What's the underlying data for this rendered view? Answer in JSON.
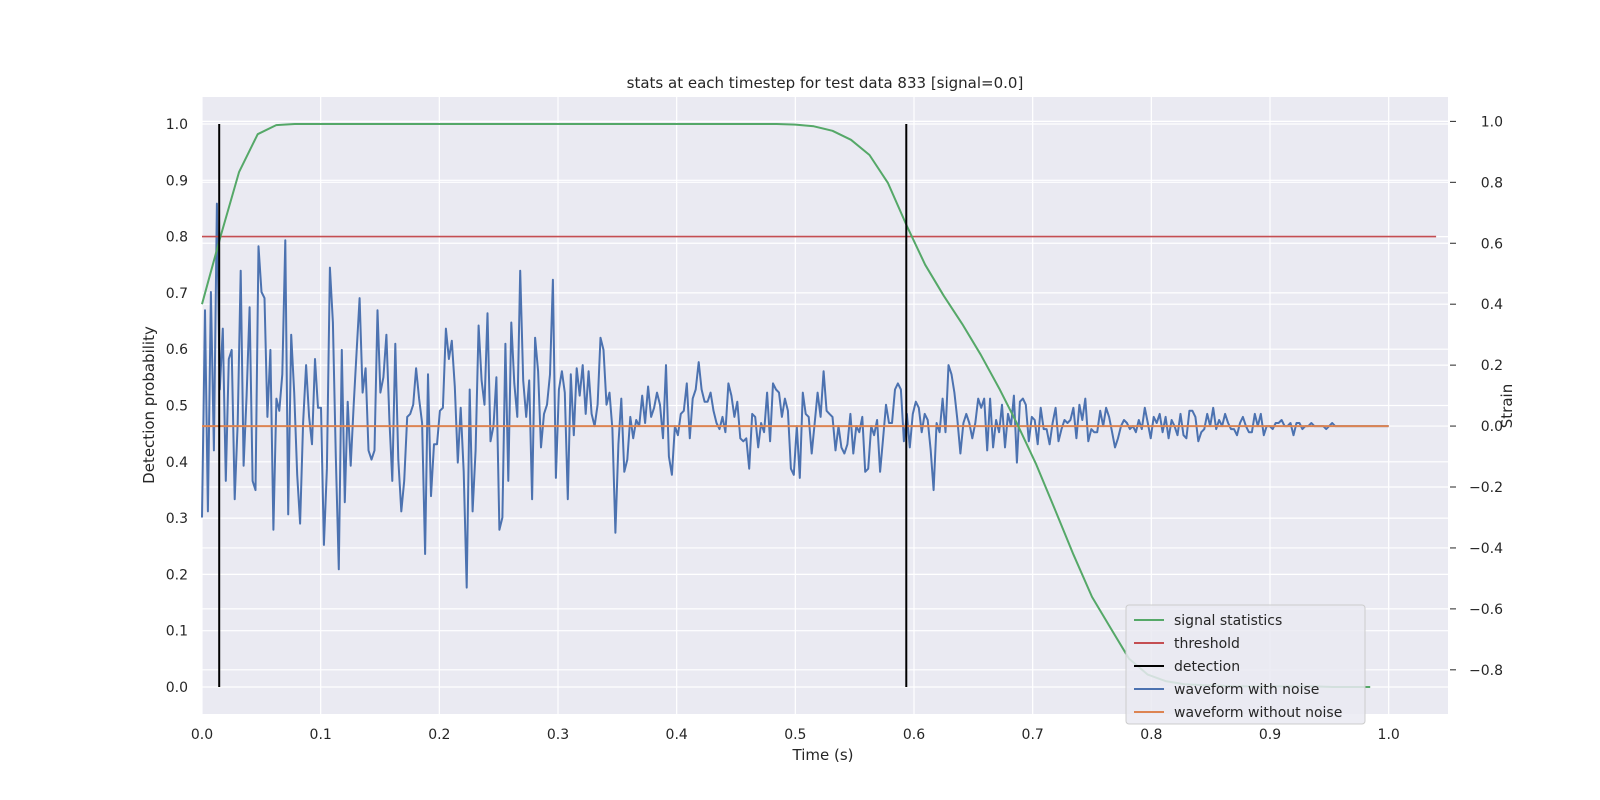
{
  "chart_data": {
    "type": "line",
    "title": "stats at each timestep for test data 833 [signal=0.0]",
    "xlabel": "Time (s)",
    "ylabel": "Detection probability",
    "ylabel_right": "Strain",
    "xlim": [
      0.0,
      1.05
    ],
    "ylim": [
      -0.048,
      1.048
    ],
    "ylim_right": [
      -0.945,
      1.08
    ],
    "x_ticks": [
      0.0,
      0.1,
      0.2,
      0.3,
      0.4,
      0.5,
      0.6,
      0.7,
      0.8,
      0.9,
      1.0
    ],
    "x_tick_labels": [
      "0.0",
      "0.1",
      "0.2",
      "0.3",
      "0.4",
      "0.5",
      "0.6",
      "0.7",
      "0.8",
      "0.9",
      "1.0"
    ],
    "y_ticks": [
      0.0,
      0.1,
      0.2,
      0.3,
      0.4,
      0.5,
      0.6,
      0.7,
      0.8,
      0.9,
      1.0
    ],
    "y_tick_labels": [
      "0.0",
      "0.1",
      "0.2",
      "0.3",
      "0.4",
      "0.5",
      "0.6",
      "0.7",
      "0.8",
      "0.9",
      "1.0"
    ],
    "y_ticks_right": [
      -0.8,
      -0.6,
      -0.4,
      -0.2,
      0.0,
      0.2,
      0.4,
      0.6,
      0.8,
      1.0
    ],
    "y_tick_labels_right": [
      "−0.8",
      "−0.6",
      "−0.4",
      "−0.2",
      "0.0",
      "0.2",
      "0.4",
      "0.6",
      "0.8",
      "1.0"
    ],
    "grid": true,
    "legend_position": "lower-right",
    "colors": {
      "background": "#eaeaf2",
      "grid": "#ffffff",
      "signal_statistics": "#55a868",
      "threshold": "#c44e52",
      "detection": "#000000",
      "waveform_with_noise": "#4c72b0",
      "waveform_without_noise": "#dd8452"
    },
    "series": [
      {
        "name": "signal statistics",
        "axis": "left",
        "x": [
          0.0,
          0.0156,
          0.0313,
          0.0469,
          0.0625,
          0.0781,
          0.0938,
          0.1094,
          0.125,
          0.1406,
          0.1563,
          0.1719,
          0.1875,
          0.2031,
          0.2188,
          0.2344,
          0.25,
          0.2656,
          0.2813,
          0.2969,
          0.3125,
          0.3281,
          0.3438,
          0.3594,
          0.375,
          0.3906,
          0.4063,
          0.4219,
          0.4375,
          0.4531,
          0.4688,
          0.4844,
          0.5,
          0.5156,
          0.5313,
          0.5469,
          0.5625,
          0.5781,
          0.5938,
          0.6094,
          0.625,
          0.6406,
          0.6563,
          0.6719,
          0.6875,
          0.7031,
          0.7188,
          0.7344,
          0.75,
          0.7656,
          0.7813,
          0.7969,
          0.8125,
          0.8281,
          0.8438,
          0.8594,
          0.875,
          0.8906,
          0.9063,
          0.9219,
          0.9375,
          0.9531,
          0.9688,
          0.9844
        ],
        "values": [
          0.68,
          0.8,
          0.915,
          0.982,
          0.998,
          1.0,
          1.0,
          1.0,
          1.0,
          1.0,
          1.0,
          1.0,
          1.0,
          1.0,
          1.0,
          1.0,
          1.0,
          1.0,
          1.0,
          1.0,
          1.0,
          1.0,
          1.0,
          1.0,
          1.0,
          1.0,
          1.0,
          1.0,
          1.0,
          1.0,
          1.0,
          1.0,
          0.999,
          0.996,
          0.988,
          0.972,
          0.945,
          0.895,
          0.82,
          0.75,
          0.695,
          0.645,
          0.59,
          0.53,
          0.465,
          0.395,
          0.315,
          0.235,
          0.16,
          0.105,
          0.05,
          0.022,
          0.01,
          0.005,
          0.003,
          0.002,
          0.001,
          0.001,
          0.001,
          0.001,
          0.001,
          0.0,
          0.0,
          0.0
        ]
      },
      {
        "name": "threshold",
        "axis": "left",
        "x": [
          0.0,
          1.04
        ],
        "values": [
          0.8,
          0.8
        ]
      },
      {
        "name": "detection",
        "axis": "left",
        "segments": [
          {
            "x": 0.0145,
            "y0": 0.0,
            "y1": 1.0
          },
          {
            "x": 0.5935,
            "y0": 0.0,
            "y1": 1.0
          }
        ]
      },
      {
        "name": "waveform with noise",
        "axis": "right",
        "x_start": 0.0,
        "x_end": 1.0,
        "values": [
          -0.3,
          0.38,
          -0.28,
          0.44,
          -0.08,
          0.73,
          0.12,
          0.32,
          -0.18,
          0.22,
          0.25,
          -0.24,
          0.01,
          0.51,
          -0.13,
          0.1,
          0.39,
          -0.18,
          -0.21,
          0.59,
          0.44,
          0.42,
          0.03,
          0.25,
          -0.34,
          0.09,
          0.05,
          0.17,
          0.61,
          -0.29,
          0.3,
          0.11,
          -0.16,
          -0.32,
          0.01,
          0.2,
          0.03,
          -0.06,
          0.22,
          0.06,
          0.06,
          -0.39,
          -0.14,
          0.52,
          0.34,
          -0.1,
          -0.47,
          0.25,
          -0.25,
          0.08,
          -0.13,
          0.07,
          0.25,
          0.42,
          0.11,
          0.19,
          -0.08,
          -0.11,
          -0.08,
          0.38,
          0.11,
          0.16,
          0.3,
          0.02,
          -0.18,
          0.27,
          -0.11,
          -0.28,
          -0.18,
          0.03,
          0.04,
          0.07,
          0.19,
          0.09,
          0.01,
          -0.42,
          0.17,
          -0.23,
          -0.06,
          -0.06,
          0.05,
          0.06,
          0.32,
          0.22,
          0.28,
          0.13,
          -0.12,
          0.06,
          -0.15,
          -0.53,
          0.12,
          -0.28,
          -0.08,
          0.33,
          0.15,
          0.07,
          0.37,
          -0.05,
          0.0,
          0.16,
          -0.34,
          -0.3,
          0.27,
          -0.18,
          0.34,
          0.14,
          0.03,
          0.51,
          0.15,
          0.03,
          0.15,
          -0.24,
          0.29,
          0.18,
          -0.07,
          0.04,
          0.07,
          0.17,
          0.48,
          -0.17,
          0.12,
          0.18,
          0.11,
          -0.24,
          0.17,
          -0.03,
          0.19,
          0.1,
          0.2,
          0.04,
          0.18,
          0.04,
          0.0,
          0.07,
          0.29,
          0.25,
          0.07,
          0.11,
          -0.01,
          -0.35,
          -0.06,
          0.09,
          -0.15,
          -0.11,
          0.03,
          -0.04,
          0.02,
          0.0,
          0.1,
          0.01,
          0.13,
          0.03,
          0.06,
          0.11,
          0.07,
          -0.04,
          0.2,
          -0.1,
          -0.16,
          0.0,
          -0.03,
          0.04,
          0.05,
          0.14,
          -0.04,
          0.09,
          0.12,
          0.21,
          0.12,
          0.08,
          0.08,
          0.11,
          0.05,
          0.01,
          -0.01,
          0.03,
          -0.02,
          0.14,
          0.1,
          0.03,
          0.08,
          -0.04,
          -0.05,
          -0.04,
          -0.14,
          0.04,
          0.03,
          -0.07,
          0.01,
          -0.02,
          0.11,
          -0.05,
          0.14,
          0.12,
          0.11,
          0.03,
          0.09,
          0.05,
          -0.14,
          -0.16,
          0.0,
          -0.17,
          0.11,
          0.04,
          0.03,
          -0.09,
          0.01,
          0.11,
          0.03,
          0.18,
          0.05,
          0.04,
          0.03,
          -0.08,
          0.0,
          -0.07,
          -0.09,
          -0.06,
          0.04,
          -0.09,
          0.0,
          -0.02,
          0.03,
          -0.15,
          -0.14,
          0.0,
          -0.03,
          0.02,
          -0.15,
          -0.04,
          0.07,
          0.01,
          0.01,
          0.12,
          0.14,
          0.12,
          -0.05,
          0.04,
          -0.07,
          0.04,
          0.08,
          0.06,
          -0.02,
          0.04,
          0.02,
          -0.08,
          -0.21,
          0.01,
          -0.02,
          0.09,
          -0.02,
          0.2,
          0.17,
          0.11,
          0.02,
          -0.09,
          0.01,
          0.04,
          0.01,
          -0.04,
          0.01,
          0.09,
          0.06,
          0.09,
          -0.08,
          0.09,
          -0.07,
          0.02,
          -0.02,
          0.07,
          -0.07,
          0.04,
          0.0,
          0.1,
          -0.12,
          0.08,
          0.09,
          0.07,
          -0.05,
          0.03,
          0.02,
          -0.06,
          0.06,
          -0.01,
          -0.01,
          -0.06,
          0.01,
          0.06,
          -0.05,
          -0.01,
          0.02,
          0.01,
          0.02,
          0.06,
          -0.04,
          0.07,
          0.02,
          0.09,
          -0.05,
          -0.01,
          -0.02,
          -0.02,
          0.05,
          0.0,
          0.06,
          0.03,
          -0.02,
          -0.07,
          -0.04,
          0.0,
          0.02,
          0.01,
          -0.01,
          0.0,
          -0.02,
          0.02,
          -0.01,
          0.06,
          0.01,
          -0.04,
          0.03,
          0.01,
          0.04,
          -0.02,
          0.03,
          -0.04,
          0.02,
          0.0,
          -0.03,
          0.04,
          -0.03,
          -0.04,
          0.05,
          0.05,
          0.03,
          -0.05,
          -0.02,
          -0.01,
          0.04,
          0.0,
          0.06,
          -0.01,
          0.02,
          0.0,
          0.04,
          0.01,
          -0.01,
          -0.01,
          -0.03,
          0.01,
          0.03,
          0.0,
          -0.02,
          -0.02,
          0.04,
          0.0,
          0.04,
          -0.03,
          0.0,
          0.0,
          -0.01,
          0.01,
          0.01,
          0.02,
          0.0,
          0.0,
          0.01,
          -0.03,
          0.01,
          0.01,
          -0.01,
          0.0,
          0.0,
          0.01,
          0.0,
          0.0,
          0.0,
          0.0,
          -0.01,
          0.0,
          0.01,
          0.0,
          0.0,
          0.0,
          0.0,
          0.0,
          0.0,
          0.0,
          0.0,
          0.0,
          0.0,
          0.0,
          0.0,
          0.0,
          0.0,
          0.0,
          0.0,
          0.0,
          0.0,
          0.0
        ],
        "note_values": "approximate; dense noise trace"
      },
      {
        "name": "waveform without noise",
        "axis": "right",
        "x": [
          0.0,
          1.0
        ],
        "values": [
          0.0,
          0.0
        ]
      }
    ],
    "legend": [
      "signal statistics",
      "threshold",
      "detection",
      "waveform with noise",
      "waveform without noise"
    ]
  }
}
